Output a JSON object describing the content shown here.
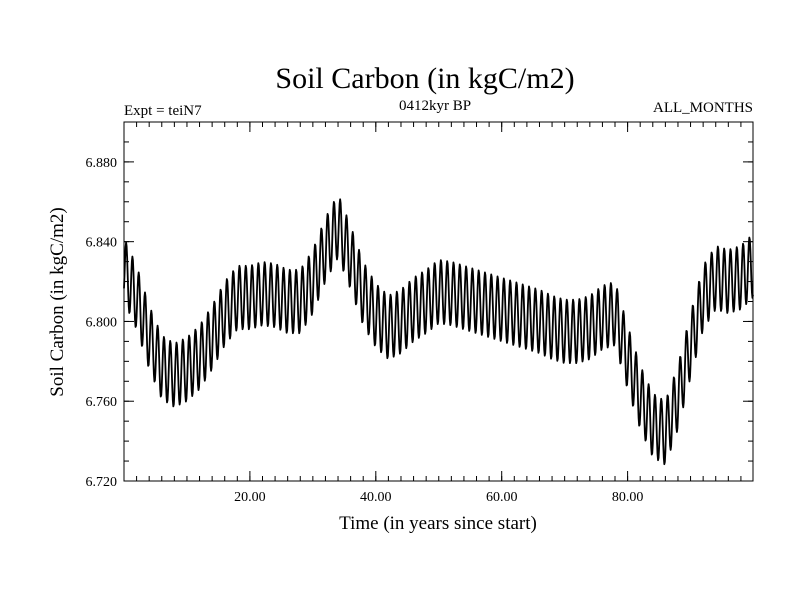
{
  "chart_data": {
    "type": "line",
    "title": "Soil Carbon (in kgC/m2)",
    "subtitle_left": "Expt = teiN7",
    "subtitle_center": "0412kyr BP",
    "subtitle_right": "ALL_MONTHS",
    "xlabel": "Time (in years since start)",
    "ylabel": "Soil Carbon (in kgC/m2)",
    "xlim": [
      0.0,
      99.92
    ],
    "ylim": [
      6.72,
      6.9
    ],
    "xticks": [
      20,
      40,
      60,
      80
    ],
    "xtick_labels": [
      "20.00",
      "40.00",
      "60.00",
      "80.00"
    ],
    "xminor_step": 2,
    "yticks": [
      6.72,
      6.76,
      6.8,
      6.84,
      6.88
    ],
    "ytick_labels": [
      "6.720",
      "6.760",
      "6.800",
      "6.840",
      "6.880"
    ],
    "yminor_step": 0.01,
    "series": [
      {
        "name": "Soil Carbon",
        "seasonal_amplitude": 0.016,
        "samples_per_year": 12,
        "annual_mean": {
          "x": [
            0,
            2,
            4,
            6,
            8,
            10,
            12,
            14,
            16,
            18,
            20,
            22,
            24,
            26,
            28,
            30,
            32,
            34,
            36,
            38,
            40,
            42,
            44,
            46,
            48,
            50,
            52,
            54,
            56,
            58,
            60,
            62,
            64,
            66,
            68,
            70,
            72,
            74,
            76,
            78,
            80,
            82,
            84,
            86,
            88,
            90,
            92,
            94,
            96,
            98,
            99.92
          ],
          "y": [
            6.826,
            6.812,
            6.792,
            6.777,
            6.773,
            6.776,
            6.782,
            6.792,
            6.804,
            6.812,
            6.812,
            6.814,
            6.813,
            6.81,
            6.81,
            6.82,
            6.836,
            6.848,
            6.832,
            6.814,
            6.803,
            6.797,
            6.8,
            6.806,
            6.81,
            6.815,
            6.814,
            6.812,
            6.81,
            6.808,
            6.806,
            6.804,
            6.802,
            6.8,
            6.797,
            6.795,
            6.795,
            6.797,
            6.802,
            6.804,
            6.782,
            6.762,
            6.748,
            6.744,
            6.762,
            6.788,
            6.812,
            6.822,
            6.82,
            6.822,
            6.828
          ]
        }
      }
    ]
  }
}
